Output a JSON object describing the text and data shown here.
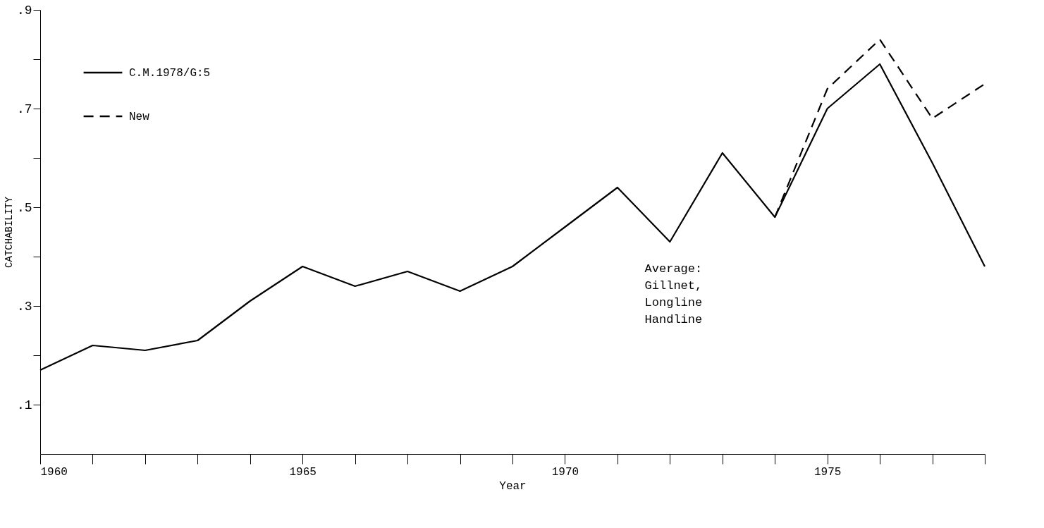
{
  "chart_data": {
    "type": "line",
    "xlabel": "Year",
    "ylabel": "CATCHABILITY",
    "x": [
      1960,
      1961,
      1962,
      1963,
      1964,
      1965,
      1966,
      1967,
      1968,
      1969,
      1970,
      1971,
      1972,
      1973,
      1974,
      1975,
      1976,
      1977,
      1978
    ],
    "series": [
      {
        "name": "C.M.1978/G:5",
        "color": "#000000",
        "line_style": "solid",
        "values": [
          0.17,
          0.22,
          0.21,
          0.23,
          0.31,
          0.38,
          0.34,
          0.37,
          0.33,
          0.38,
          0.46,
          0.54,
          0.43,
          0.61,
          0.48,
          0.7,
          0.79,
          0.59,
          0.38
        ]
      },
      {
        "name": "New",
        "color": "#000000",
        "line_style": "dashed",
        "x": [
          1974,
          1975,
          1976,
          1977,
          1978
        ],
        "values": [
          0.48,
          0.74,
          0.84,
          0.68,
          0.75
        ]
      }
    ],
    "xlim": [
      1960,
      1978
    ],
    "xticks": [
      1960,
      {
        "value": 1961,
        "label": null
      },
      {
        "value": 1962,
        "label": null
      },
      {
        "value": 1963,
        "label": null
      },
      {
        "value": 1964,
        "label": null
      },
      1965,
      {
        "value": 1966,
        "label": null
      },
      {
        "value": 1967,
        "label": null
      },
      {
        "value": 1968,
        "label": null
      },
      {
        "value": 1969,
        "label": null
      },
      1970,
      {
        "value": 1971,
        "label": null
      },
      {
        "value": 1972,
        "label": null
      },
      {
        "value": 1973,
        "label": null
      },
      {
        "value": 1974,
        "label": null
      },
      1975,
      {
        "value": 1976,
        "label": null
      },
      {
        "value": 1977,
        "label": null
      },
      {
        "value": 1978,
        "label": null
      }
    ],
    "ylim": [
      0,
      0.9
    ],
    "yticks": [
      {
        "value": 0.1,
        "label": ".1"
      },
      {
        "value": 0.2,
        "label": null
      },
      {
        "value": 0.3,
        "label": ".3"
      },
      {
        "value": 0.4,
        "label": null
      },
      {
        "value": 0.5,
        "label": ".5"
      },
      {
        "value": 0.6,
        "label": null
      },
      {
        "value": 0.7,
        "label": ".7"
      },
      {
        "value": 0.8,
        "label": null
      },
      {
        "value": 0.9,
        "label": ".9"
      }
    ],
    "annotations": [
      "Average:\nGillnet,\nLongline\nHandline"
    ],
    "legend": "top left",
    "grid": false,
    "marker": "none"
  }
}
